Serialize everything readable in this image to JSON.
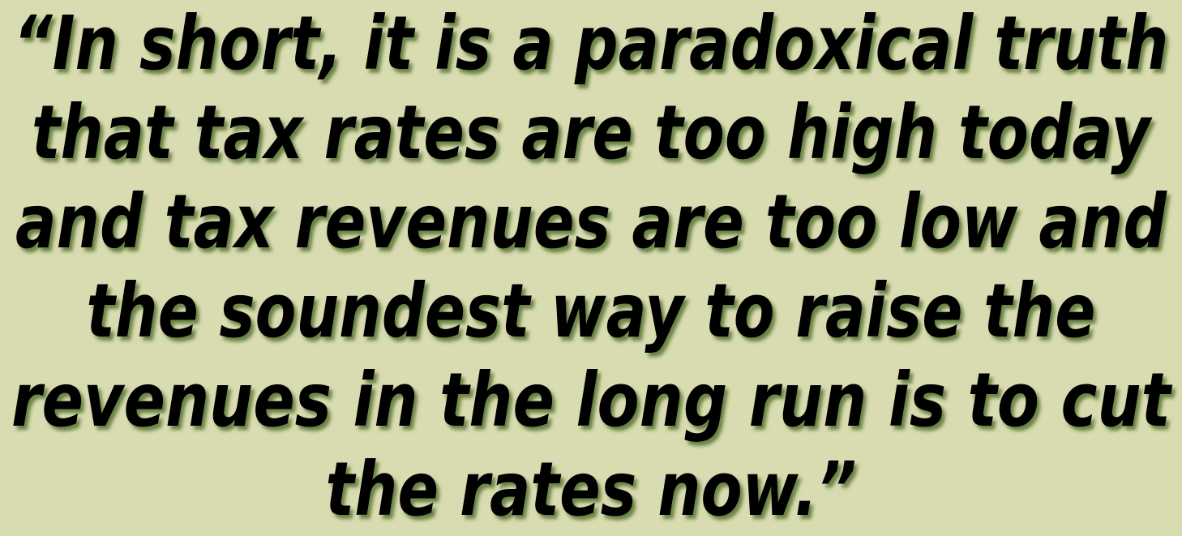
{
  "quote": {
    "lines": [
      "“In short, it is a paradoxical truth",
      "that tax rates are too high today",
      "and tax revenues are too low and",
      "the soundest way to raise the",
      "revenues in the long run is to cut",
      "the rates now.”"
    ]
  }
}
